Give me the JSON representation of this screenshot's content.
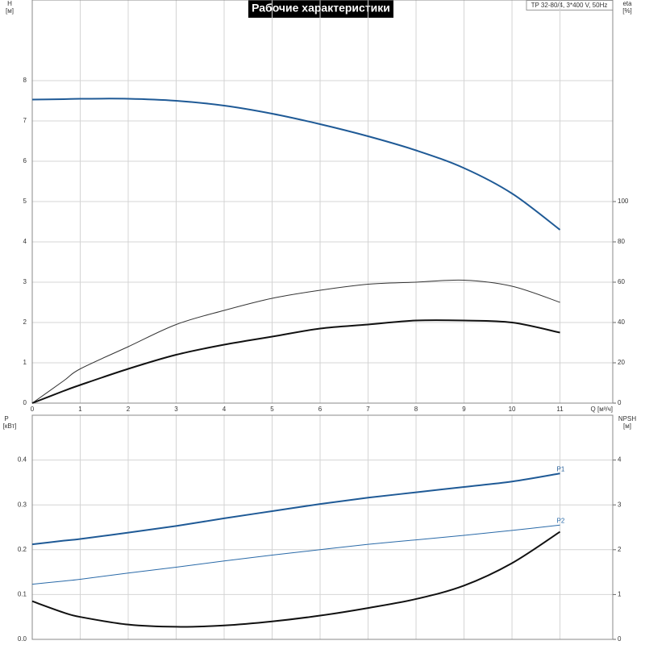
{
  "title": "Рабочие характеристики",
  "subtitle": "TP 32-80/4, 3*400 V, 50Hz",
  "chart_data": [
    {
      "type": "line",
      "xlabel": "Q [м³/ч]",
      "ylabel": "H",
      "yunit": "[м]",
      "y2label": "eta",
      "y2unit": "[%]",
      "x": [
        0,
        0.65,
        1,
        2,
        3,
        4,
        5,
        6,
        7,
        8,
        9,
        10,
        11
      ],
      "xlim": [
        0,
        12.1
      ],
      "xticks": [
        0,
        1,
        2,
        3,
        4,
        5,
        6,
        7,
        8,
        9,
        10,
        11
      ],
      "ylim": [
        0,
        10
      ],
      "yticks": [
        0,
        1,
        2,
        3,
        4,
        5,
        6,
        7,
        8
      ],
      "y2lim": [
        0,
        200
      ],
      "y2ticks": [
        0,
        20,
        40,
        60,
        80,
        100
      ],
      "grid": true,
      "series": [
        {
          "color": "#1f5a96",
          "values": [
            7.53,
            7.54,
            7.55,
            7.55,
            7.5,
            7.38,
            7.18,
            6.92,
            6.62,
            6.27,
            5.83,
            5.2,
            4.3
          ]
        },
        {
          "color": "#333333",
          "axis": "y2",
          "values": [
            0,
            11,
            17,
            28,
            39,
            46,
            52,
            56,
            59,
            60,
            61,
            58,
            50
          ]
        },
        {
          "color": "#111111",
          "axis": "y2",
          "values": [
            0,
            6,
            9,
            17,
            24,
            29,
            33,
            37,
            39,
            41,
            41,
            40,
            35
          ]
        }
      ]
    },
    {
      "type": "line",
      "ylabel": "P",
      "yunit": "[кВт]",
      "y2label": "NPSH",
      "y2unit": "[м]",
      "x": [
        0,
        0.65,
        1,
        2,
        3,
        4,
        5,
        6,
        7,
        8,
        9,
        10,
        11
      ],
      "xlim": [
        0,
        12.1
      ],
      "xticks": [
        0,
        1,
        2,
        3,
        4,
        5,
        6,
        7,
        8,
        9,
        10,
        11
      ],
      "ylim": [
        0,
        0.5
      ],
      "yticks": [
        {
          "value": 0,
          "label": "0.0"
        },
        0.1,
        0.2,
        0.3,
        0.4
      ],
      "y2lim": [
        0,
        5
      ],
      "y2ticks": [
        0,
        1,
        2,
        3,
        4
      ],
      "grid": true,
      "series": [
        {
          "name": "P1",
          "color": "#1f5a96",
          "values": [
            0.212,
            0.22,
            0.224,
            0.238,
            0.253,
            0.27,
            0.286,
            0.302,
            0.316,
            0.328,
            0.34,
            0.352,
            0.37
          ]
        },
        {
          "name": "P2",
          "color": "#2a6aa8",
          "values": [
            0.123,
            0.13,
            0.134,
            0.148,
            0.161,
            0.175,
            0.188,
            0.2,
            0.212,
            0.222,
            0.232,
            0.243,
            0.255
          ]
        },
        {
          "color": "#111111",
          "axis": "y2",
          "values": [
            0.85,
            0.6,
            0.5,
            0.33,
            0.28,
            0.31,
            0.4,
            0.53,
            0.7,
            0.9,
            1.2,
            1.7,
            2.4
          ]
        }
      ]
    }
  ]
}
